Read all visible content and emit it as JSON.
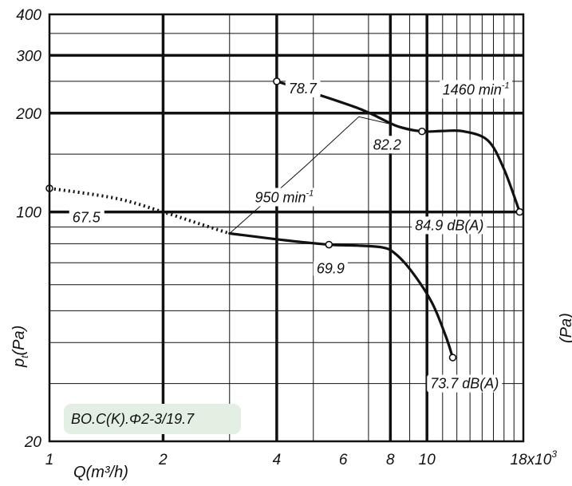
{
  "chart_data": {
    "type": "line",
    "x_scale": "log",
    "y_scale": "log",
    "xlim": [
      1,
      18
    ],
    "ylim": [
      20,
      400
    ],
    "xlabel": "Q(m³/h)",
    "ylabel": "pt(Pa)",
    "ylabel_main": "p",
    "ylabel_sub": "t",
    "ylabel_tail": "(Pa)",
    "x_ticks": [
      {
        "value": 1,
        "label": "1"
      },
      {
        "value": 2,
        "label": "2"
      },
      {
        "value": 4,
        "label": "4"
      },
      {
        "value": 6,
        "label": "6"
      },
      {
        "value": 8,
        "label": "8"
      },
      {
        "value": 10,
        "label": "10"
      },
      {
        "value": 18,
        "label": "18x10",
        "sup": "3"
      }
    ],
    "y_ticks": [
      {
        "value": 20,
        "label": "20"
      },
      {
        "value": 100,
        "label": "100"
      },
      {
        "value": 200,
        "label": "200"
      },
      {
        "value": 300,
        "label": "300"
      },
      {
        "value": 400,
        "label": "400"
      }
    ],
    "grid_x_minor": [
      3,
      5,
      7,
      9,
      11,
      12,
      13,
      14,
      15,
      16,
      17
    ],
    "grid_x_major": [
      2,
      4,
      8,
      10
    ],
    "grid_y_major": [
      100,
      200,
      300
    ],
    "grid_y_minor": [
      30,
      40,
      50,
      60,
      70,
      80,
      90,
      150,
      250,
      350
    ],
    "series": [
      {
        "name": "1460 min-1",
        "style": "solid",
        "points": [
          [
            4.0,
            250
          ],
          [
            6.5,
            208
          ],
          [
            8.3,
            183
          ],
          [
            9.7,
            176
          ],
          [
            11,
            176.5
          ],
          [
            12.5,
            176
          ],
          [
            14.5,
            165
          ],
          [
            16,
            135
          ],
          [
            17.6,
            100
          ]
        ]
      },
      {
        "name": "950 min-1",
        "style": "solid",
        "points": [
          [
            3.0,
            86
          ],
          [
            4.2,
            82
          ],
          [
            5.5,
            79.5
          ],
          [
            6.5,
            79
          ],
          [
            7.6,
            78
          ],
          [
            8.2,
            75
          ],
          [
            9.1,
            66
          ],
          [
            10.3,
            53
          ],
          [
            11.2,
            42
          ],
          [
            11.7,
            36
          ]
        ]
      },
      {
        "name": "950 min-1 extension",
        "style": "dotted",
        "points": [
          [
            1.0,
            118
          ],
          [
            1.5,
            110
          ],
          [
            2.0,
            100
          ],
          [
            2.5,
            92
          ],
          [
            3.0,
            86
          ]
        ]
      }
    ],
    "system_line": [
      [
        3.0,
        86
      ],
      [
        4.8,
        139
      ],
      [
        6.6,
        195
      ],
      [
        9.7,
        176
      ]
    ],
    "markers": [
      [
        1.0,
        118
      ],
      [
        4.0,
        250
      ],
      [
        5.5,
        79.5
      ],
      [
        9.7,
        176
      ],
      [
        17.6,
        100
      ],
      [
        11.7,
        36
      ]
    ],
    "annotations": [
      {
        "text": "78.7",
        "x": 4.3,
        "y": 230
      },
      {
        "text": "82.2",
        "x": 7.2,
        "y": 155
      },
      {
        "text": "1460 min",
        "sup": "-1",
        "x": 11.0,
        "y": 228
      },
      {
        "text": "950 min",
        "sup": "-1",
        "x": 3.5,
        "y": 107
      },
      {
        "text": "67.5",
        "x": 1.15,
        "y": 93
      },
      {
        "text": "84.9 dB(A)",
        "x": 9.3,
        "y": 88
      },
      {
        "text": "69.9",
        "x": 5.1,
        "y": 65
      },
      {
        "text": "73.7 dB(A)",
        "x": 10.2,
        "y": 29
      }
    ],
    "model_label": "BO.C(K).Φ2-3/19.7"
  }
}
